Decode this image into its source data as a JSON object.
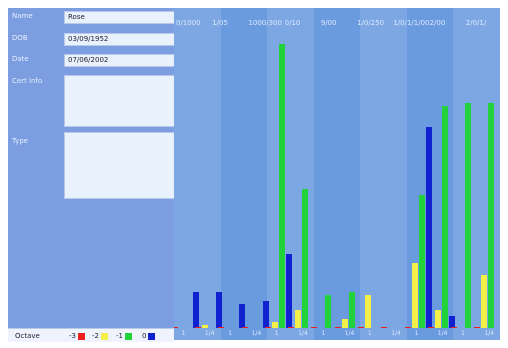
{
  "form": {
    "name_label": "Name",
    "name_value": "Rose",
    "dob_label": "DOB",
    "dob_value": "03/09/1952",
    "date_label": "Date",
    "date_value": "07/06/2002",
    "cert_label": "Cert info",
    "cert_value": "",
    "type_label": "Type",
    "type_value": ""
  },
  "legend": {
    "title": "Octave",
    "items": [
      {
        "label": "-3",
        "color": "#ee1e1e"
      },
      {
        "label": "-2",
        "color": "#f4f048"
      },
      {
        "label": "-1",
        "color": "#22d23a"
      },
      {
        "label": "0",
        "color": "#1022d0"
      }
    ]
  },
  "colors": {
    "panel": "#7c9ee0",
    "chart_bg": "#6fa4ee",
    "band_a": "#7ca7e3",
    "band_b": "#6b9bdf",
    "red": "#ee1e1e",
    "yellow": "#f4f048",
    "green": "#22d23a",
    "blue": "#1022d0"
  },
  "chart_data": {
    "type": "bar",
    "header_labels": [
      "0/1000",
      "1/05",
      "1000/300",
      "0/10",
      "9/00",
      "1/0/250",
      "1/0/1/1/00",
      "2/00",
      "2/0/1/"
    ],
    "categories": [
      "1",
      "1/4",
      "1",
      "1/4",
      "1",
      "1/4",
      "1",
      "1/4",
      "1",
      "1/4",
      "1",
      "1/4",
      "1",
      "1/4"
    ],
    "ylim": [
      0,
      100
    ],
    "series": [
      {
        "name": "-3",
        "color": "#ee1e1e",
        "values": [
          0.5,
          0.5,
          0.5,
          0.5,
          0.5,
          0.5,
          0.5,
          0.5,
          0.5,
          0.5,
          0.5,
          0.5,
          0.5,
          0.5
        ]
      },
      {
        "name": "-2",
        "color": "#f4f048",
        "values": [
          0,
          1,
          0,
          0,
          2,
          6,
          0,
          3,
          11,
          0,
          22,
          6,
          0,
          18
        ]
      },
      {
        "name": "-1",
        "color": "#22d23a",
        "values": [
          0,
          0,
          0,
          0,
          96,
          47,
          11,
          12,
          0,
          0,
          45,
          75,
          76,
          76
        ]
      },
      {
        "name": "0",
        "color": "#1022d0",
        "values": [
          12,
          12,
          8,
          9,
          25,
          0,
          0,
          0,
          0,
          0,
          68,
          4,
          0,
          0
        ]
      }
    ]
  }
}
